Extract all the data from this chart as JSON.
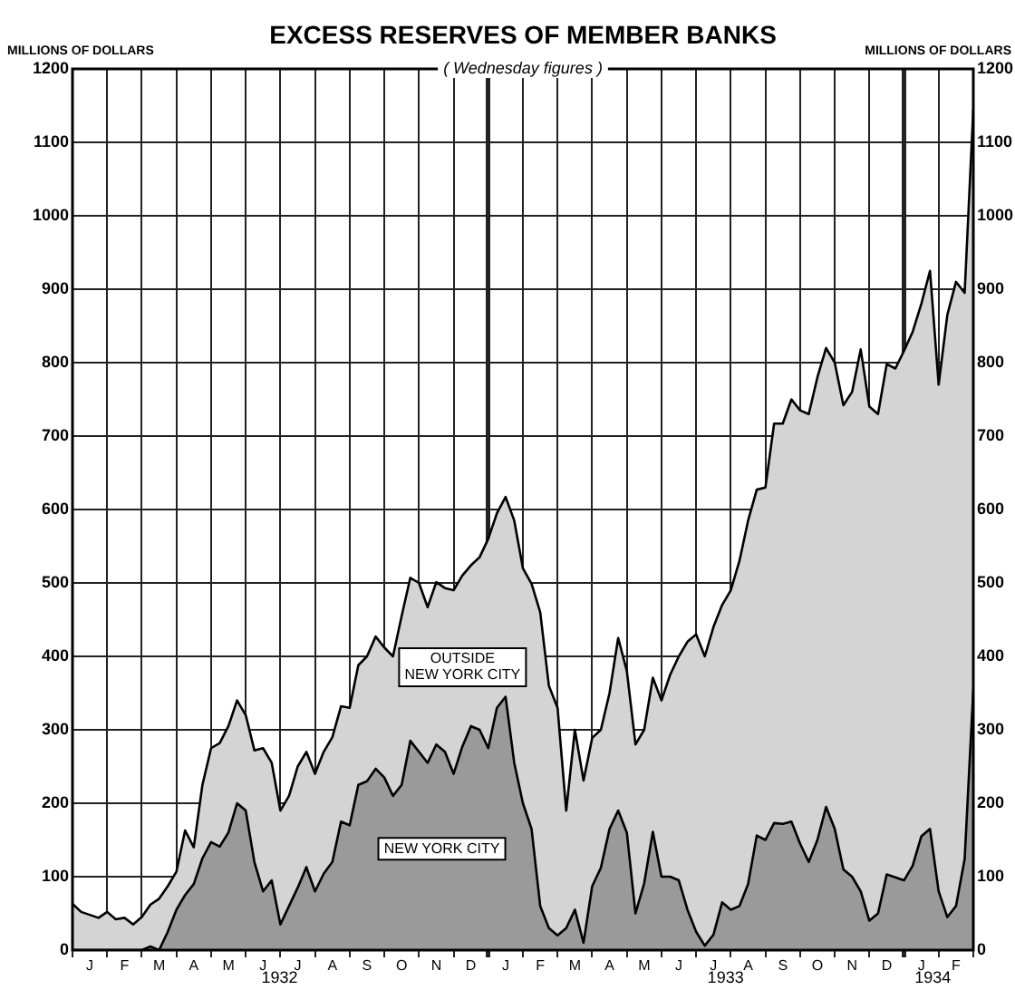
{
  "chart_data": {
    "type": "area",
    "title": "EXCESS RESERVES OF MEMBER BANKS",
    "subtitle": "( Wednesday figures )",
    "ylabel": "MILLIONS OF DOLLARS",
    "y2label": "MILLIONS OF DOLLARS",
    "stacked": true,
    "grid": true,
    "categories": [
      null,
      null,
      "J",
      null,
      null,
      null,
      "F",
      null,
      null,
      null,
      "M",
      null,
      null,
      null,
      "A",
      null,
      null,
      null,
      "M",
      null,
      null,
      null,
      "J",
      null,
      null,
      null,
      "J",
      null,
      null,
      null,
      "A",
      null,
      null,
      null,
      "S",
      null,
      null,
      null,
      "O",
      null,
      null,
      null,
      "N",
      null,
      null,
      null,
      "D",
      null,
      null,
      null,
      "J",
      null,
      null,
      null,
      "F",
      null,
      null,
      null,
      "M",
      null,
      null,
      null,
      "A",
      null,
      null,
      null,
      "M",
      null,
      null,
      null,
      "J",
      null,
      null,
      null,
      "J",
      null,
      null,
      null,
      "A",
      null,
      null,
      null,
      "S",
      null,
      null,
      null,
      "O",
      null,
      null,
      null,
      "N",
      null,
      null,
      null,
      "D",
      null,
      null,
      null,
      "J",
      null,
      null,
      null,
      "F",
      null,
      null
    ],
    "series": [
      {
        "name": "NEW YORK CITY",
        "color": "#9a9a9a",
        "values": [
          0,
          0,
          0,
          0,
          0,
          0,
          0,
          0,
          0,
          5,
          0,
          25,
          55,
          75,
          90,
          125,
          147,
          141,
          160,
          200,
          190,
          120,
          80,
          95,
          35,
          60,
          85,
          113,
          80,
          104,
          120,
          175,
          170,
          225,
          230,
          247,
          235,
          210,
          225,
          285,
          270,
          255,
          280,
          270,
          240,
          277,
          305,
          300,
          275,
          330,
          345,
          255,
          200,
          165,
          60,
          30,
          20,
          30,
          55,
          10,
          87,
          112,
          165,
          190,
          160,
          50,
          91,
          161,
          100,
          100,
          95,
          55,
          25,
          6,
          21,
          65,
          55,
          60,
          90,
          156,
          150,
          173,
          172,
          175,
          145,
          120,
          150,
          195,
          165,
          110,
          100,
          80,
          40,
          50,
          103,
          99,
          95,
          115,
          155,
          165,
          80,
          45,
          60,
          124,
          355
        ]
      },
      {
        "name": "OUTSIDE\nNEW YORK CITY",
        "color": "#d4d4d4",
        "values": [
          63,
          52,
          48,
          44,
          52,
          42,
          44,
          35,
          45,
          57,
          70,
          62,
          52,
          88,
          50,
          100,
          128,
          141,
          145,
          140,
          130,
          152,
          195,
          160,
          155,
          150,
          165,
          157,
          160,
          166,
          170,
          157,
          160,
          163,
          170,
          180,
          177,
          190,
          230,
          222,
          230,
          212,
          221,
          223,
          250,
          233,
          219,
          235,
          285,
          265,
          272,
          330,
          320,
          334,
          400,
          330,
          310,
          160,
          245,
          221,
          202,
          188,
          185,
          235,
          220,
          230,
          209,
          210,
          240,
          275,
          305,
          365,
          405,
          394,
          419,
          405,
          435,
          470,
          495,
          471,
          480,
          544,
          545,
          575,
          590,
          610,
          630,
          625,
          635,
          632,
          660,
          738,
          700,
          680,
          695,
          693,
          721,
          727,
          725,
          760,
          690,
          820,
          850,
          771,
          790
        ]
      }
    ],
    "ylim": [
      0,
      1200
    ],
    "yticks": [
      0,
      100,
      200,
      300,
      400,
      500,
      600,
      700,
      800,
      900,
      1000,
      1100,
      1200
    ],
    "y2lim": [
      0,
      1200
    ],
    "y2ticks": [
      0,
      100,
      200,
      300,
      400,
      500,
      600,
      700,
      800,
      900,
      1000,
      1100,
      1200
    ],
    "annotations": [
      "1932",
      "1933",
      "1934"
    ]
  }
}
